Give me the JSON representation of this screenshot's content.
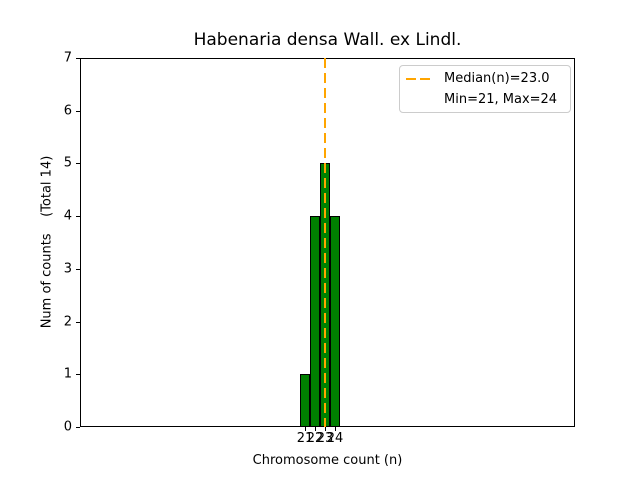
{
  "figure": {
    "background": "#ffffff"
  },
  "chart_data": {
    "type": "bar",
    "title": "Habenaria densa Wall. ex Lindl.",
    "xlabel": "Chromosome count (n)",
    "ylabel": "Num of counts    (Total 14)",
    "categories": [
      21,
      22,
      23,
      24
    ],
    "values": [
      1,
      4,
      5,
      4
    ],
    "total_counts": 14,
    "median": 23.0,
    "min": 21,
    "max": 24,
    "bar_width_units": 1.0,
    "xlim": [
      -1.5,
      48.0
    ],
    "ylim": [
      0,
      7
    ],
    "xticks": [
      21,
      22,
      23,
      24
    ],
    "yticks": [
      0,
      1,
      2,
      3,
      4,
      5,
      6,
      7
    ],
    "grid": false,
    "colors": {
      "bar_fill": "#008000",
      "bar_edge": "#000000",
      "median_line": "#ffa500",
      "axes_edge": "#000000",
      "legend_edge": "#cccccc"
    },
    "legend": {
      "position": "upper right",
      "entries": [
        {
          "label": "Median(n)=23.0",
          "marker": "orange-dashed-line"
        },
        {
          "label": "Min=21, Max=24",
          "marker": "none"
        }
      ]
    }
  }
}
